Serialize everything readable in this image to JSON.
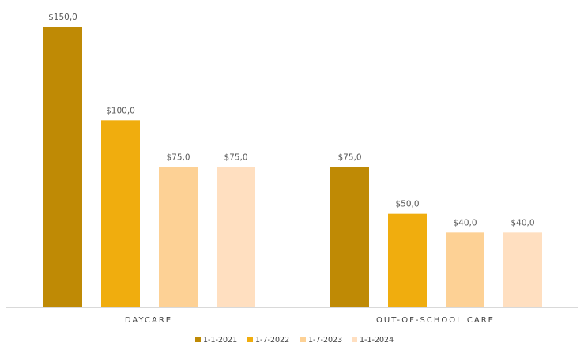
{
  "chart_data": {
    "type": "bar",
    "categories": [
      "DAYCARE",
      "OUT-OF-SCHOOL CARE"
    ],
    "series": [
      {
        "name": "1-1-2021",
        "color": "#BF8A05",
        "values": [
          150,
          75
        ],
        "labels": [
          "$150,0",
          "$75,0"
        ]
      },
      {
        "name": "1-7-2022",
        "color": "#F0AD0E",
        "values": [
          100,
          50
        ],
        "labels": [
          "$100,0",
          "$50,0"
        ]
      },
      {
        "name": "1-7-2023",
        "color": "#FDD195",
        "values": [
          75,
          40
        ],
        "labels": [
          "$75,0",
          "$40,0"
        ]
      },
      {
        "name": "1-1-2024",
        "color": "#FFDFC0",
        "values": [
          75,
          40
        ],
        "labels": [
          "$75,0",
          "$40,0"
        ]
      }
    ],
    "ylim": [
      0,
      150
    ],
    "grid": false,
    "legend": "bottom"
  }
}
